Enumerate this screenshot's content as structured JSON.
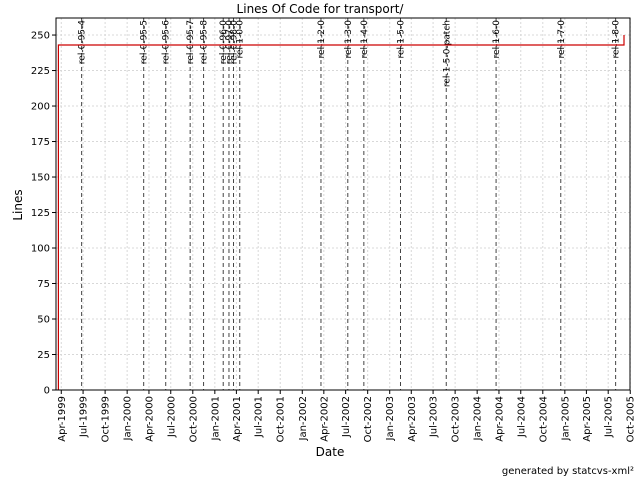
{
  "chart_data": {
    "type": "line",
    "title": "Lines Of Code for transport/",
    "xlabel": "Date",
    "ylabel": "Lines",
    "ylim": [
      0,
      262
    ],
    "xlim": [
      "1999-03-10",
      "2005-09-30"
    ],
    "y_ticks": [
      0,
      25,
      50,
      75,
      100,
      125,
      150,
      175,
      200,
      225,
      250
    ],
    "x_ticks": [
      "Apr-1999",
      "Jul-1999",
      "Oct-1999",
      "Jan-2000",
      "Apr-2000",
      "Jul-2000",
      "Oct-2000",
      "Jan-2001",
      "Apr-2001",
      "Jul-2001",
      "Oct-2001",
      "Jan-2002",
      "Apr-2002",
      "Jul-2002",
      "Oct-2002",
      "Jan-2003",
      "Apr-2003",
      "Jul-2003",
      "Oct-2003",
      "Jan-2004",
      "Apr-2004",
      "Jul-2004",
      "Oct-2004",
      "Jan-2005",
      "Apr-2005",
      "Jul-2005",
      "Oct-2005"
    ],
    "x_tick_dates": [
      "1999-04-01",
      "1999-07-01",
      "1999-10-01",
      "2000-01-01",
      "2000-04-01",
      "2000-07-01",
      "2000-10-01",
      "2001-01-01",
      "2001-04-01",
      "2001-07-01",
      "2001-10-01",
      "2002-01-01",
      "2002-04-01",
      "2002-07-01",
      "2002-10-01",
      "2003-01-01",
      "2003-04-01",
      "2003-07-01",
      "2003-10-01",
      "2004-01-01",
      "2004-04-01",
      "2004-07-01",
      "2004-10-01",
      "2005-01-01",
      "2005-04-01",
      "2005-07-01",
      "2005-10-01"
    ],
    "series": [
      {
        "color": "#cc0000",
        "points": [
          {
            "x": "1999-03-20",
            "y": 0
          },
          {
            "x": "1999-03-20",
            "y": 243
          },
          {
            "x": "2005-09-05",
            "y": 243
          },
          {
            "x": "2005-09-05",
            "y": 250
          }
        ]
      }
    ],
    "releases": [
      {
        "label": "rel-0-95-4",
        "date": "1999-06-25"
      },
      {
        "label": "rel-0-95-5",
        "date": "2000-03-10"
      },
      {
        "label": "rel-0-95-6",
        "date": "2000-06-10"
      },
      {
        "label": "rel-0-95-7",
        "date": "2000-09-20"
      },
      {
        "label": "rel-0-95-8",
        "date": "2000-11-15"
      },
      {
        "label": "rel-0-96-0",
        "date": "2001-02-05"
      },
      {
        "label": "rel-0-97-0",
        "date": "2001-03-01"
      },
      {
        "label": "rel-0-98-0",
        "date": "2001-03-20"
      },
      {
        "label": "rel-1-0-0",
        "date": "2001-04-15"
      },
      {
        "label": "rel-1-2-0",
        "date": "2002-03-20"
      },
      {
        "label": "rel-1-3-0",
        "date": "2002-07-10"
      },
      {
        "label": "rel-1-4-0",
        "date": "2002-09-15"
      },
      {
        "label": "rel-1-5-0",
        "date": "2003-02-15"
      },
      {
        "label": "rel-1-5-0-patch",
        "date": "2003-08-25"
      },
      {
        "label": "rel-1-6-0",
        "date": "2004-03-20"
      },
      {
        "label": "rel-1-7-0",
        "date": "2004-12-15"
      },
      {
        "label": "rel-1-8-0",
        "date": "2005-08-01"
      }
    ],
    "grid": true,
    "colors": {
      "series": "#cc0000",
      "grid": "#d8d8d8",
      "release": "#444444"
    }
  },
  "footer": "generated by statcvs-xml²"
}
